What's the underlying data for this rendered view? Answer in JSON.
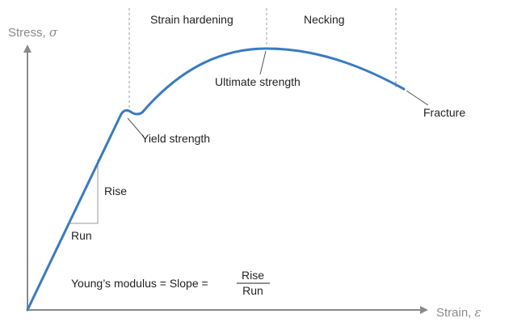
{
  "axes": {
    "y_label": "Stress,",
    "y_symbol": "σ",
    "x_label": "Strain,",
    "x_symbol": "ε"
  },
  "regions": {
    "strain_hardening": "Strain hardening",
    "necking": "Necking"
  },
  "points": {
    "yield": "Yield strength",
    "ultimate": "Ultimate strength",
    "fracture": "Fracture"
  },
  "slope": {
    "rise": "Rise",
    "run": "Run"
  },
  "formula": {
    "text": "Young’s modulus = Slope =",
    "numerator": "Rise",
    "denominator": "Run"
  },
  "colors": {
    "curve": "#3a7bbf",
    "axis": "#8a8a8a",
    "guide": "#9a9a9a",
    "text": "#222222"
  }
}
